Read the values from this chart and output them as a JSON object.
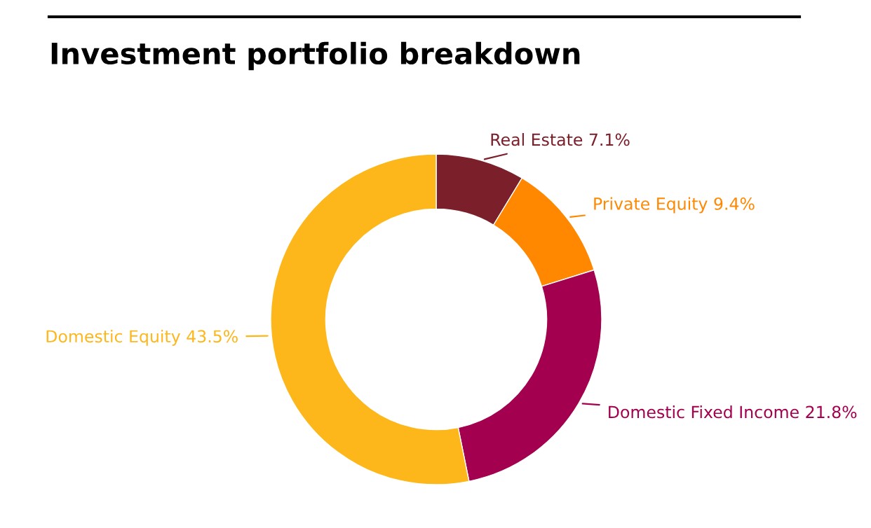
{
  "chart_data": {
    "type": "donut",
    "title": "Investment portfolio breakdown",
    "categories": [
      "Real Estate",
      "Private Equity",
      "Domestic Fixed Income",
      "Domestic Equity"
    ],
    "values": [
      7.1,
      9.4,
      21.8,
      43.5
    ],
    "value_labels": [
      "7.1%",
      "9.4%",
      "21.8%",
      "43.5%"
    ],
    "colors": [
      "#7b1f2a",
      "#ff8800",
      "#a3004f",
      "#fdb71b"
    ],
    "legend": false
  }
}
